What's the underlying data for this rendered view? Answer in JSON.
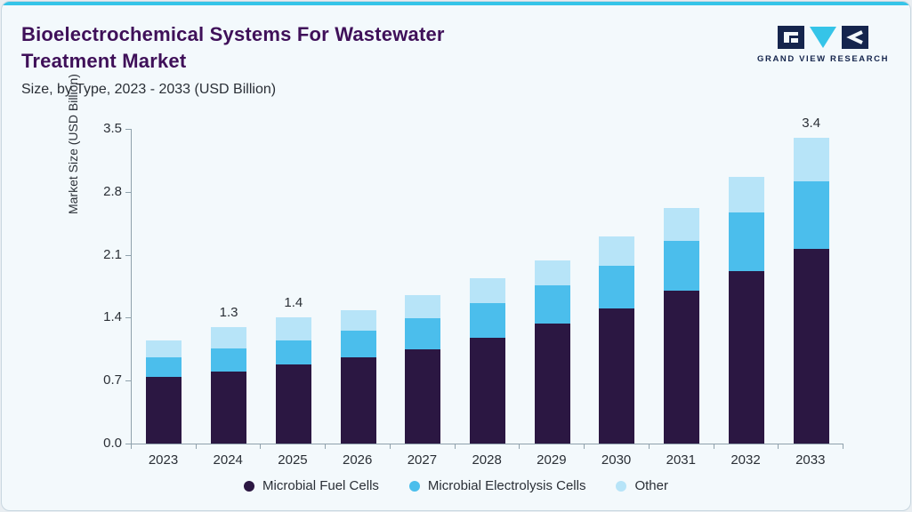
{
  "header": {
    "title_line1": "Bioelectrochemical Systems For Wastewater",
    "title_line2": "Treatment Market",
    "subtitle": "Size, by Type, 2023 - 2033 (USD Billion)",
    "logo_text": "GRAND VIEW RESEARCH"
  },
  "colors": {
    "accent_top": "#35c4e8",
    "title_purple": "#3f1059",
    "logo_navy": "#15254d",
    "logo_cyan": "#35c4e8",
    "axis_gray": "#8fa1ac",
    "card_background": "#f3f9fc"
  },
  "chart_data": {
    "type": "bar",
    "stacked": true,
    "title": "Bioelectrochemical Systems For Wastewater Treatment Market Size, by Type, 2023 - 2033 (USD Billion)",
    "xlabel": "",
    "ylabel": "Market Size (USD Billion)",
    "ylim": [
      0,
      3.5
    ],
    "yticks": [
      "0.0",
      "0.7",
      "1.4",
      "2.1",
      "2.8",
      "3.5"
    ],
    "grid": false,
    "legend_position": "bottom",
    "categories": [
      "2023",
      "2024",
      "2025",
      "2026",
      "2027",
      "2028",
      "2029",
      "2030",
      "2031",
      "2032",
      "2033"
    ],
    "series": [
      {
        "name": "Microbial Fuel Cells",
        "color": "#2b1742",
        "values": [
          0.74,
          0.8,
          0.88,
          0.96,
          1.05,
          1.18,
          1.33,
          1.5,
          1.7,
          1.92,
          2.17
        ]
      },
      {
        "name": "Microbial Electrolysis Cells",
        "color": "#4bbeec",
        "values": [
          0.22,
          0.26,
          0.27,
          0.3,
          0.34,
          0.38,
          0.43,
          0.48,
          0.55,
          0.65,
          0.75
        ]
      },
      {
        "name": "Other",
        "color": "#b7e4f8",
        "values": [
          0.19,
          0.24,
          0.25,
          0.22,
          0.26,
          0.28,
          0.28,
          0.32,
          0.37,
          0.4,
          0.48
        ]
      }
    ],
    "total_labels": [
      "",
      "1.3",
      "1.4",
      "",
      "",
      "",
      "",
      "",
      "",
      "",
      "3.4"
    ]
  }
}
